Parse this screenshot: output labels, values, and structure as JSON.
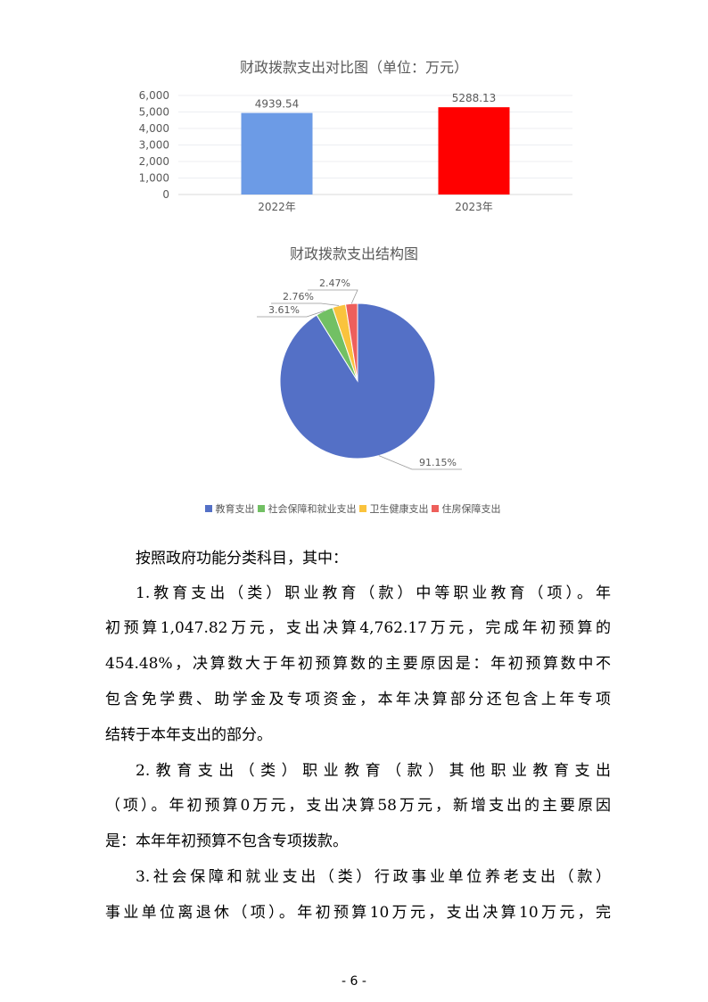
{
  "chart_data": [
    {
      "type": "bar",
      "title": "财政拨款支出对比图（单位：万元）",
      "categories": [
        "2022年",
        "2023年"
      ],
      "values": [
        4939.54,
        5288.13
      ],
      "data_labels": [
        "4939.54",
        "5288.13"
      ],
      "colors": [
        "#6C9BE6",
        "#FF0000"
      ],
      "yticks": [
        "0",
        "1,000",
        "2,000",
        "3,000",
        "4,000",
        "5,000",
        "6,000"
      ],
      "ylim": [
        0,
        6000
      ],
      "grid": true
    },
    {
      "type": "pie",
      "title": "财政拨款支出结构图",
      "categories": [
        "教育支出",
        "社会保障和就业支出",
        "卫生健康支出",
        "住房保障支出"
      ],
      "values": [
        91.15,
        3.61,
        2.76,
        2.47
      ],
      "data_labels": [
        "91.15%",
        "3.61%",
        "2.76%",
        "2.47%"
      ],
      "colors": [
        "#5470C6",
        "#72C064",
        "#FAC33D",
        "#EE5F5B"
      ],
      "legend": "bottom"
    }
  ],
  "body": {
    "lines": [
      "按照政府功能分类科目，其中：",
      "1.教育支出（类）职业教育（款）中等职业教育（项）。年",
      "初预算1,047.82万元，支出决算4,762.17万元，完成年初预算的",
      "454.48%，决算数大于年初预算数的主要原因是：年初预算数中不",
      "包含免学费、助学金及专项资金，本年决算部分还包含上年专项",
      "结转于本年支出的部分。",
      "2.教育支出（类）职业教育（款）其他职业教育支出",
      "（项）。年初预算0万元，支出决算58万元，新增支出的主要原因",
      "是：本年年初预算不包含专项拨款。",
      "3.社会保障和就业支出（类）行政事业单位养老支出（款）",
      "事业单位离退休（项）。年初预算10万元，支出决算10万元，完"
    ]
  },
  "page_number": "- 6 -"
}
